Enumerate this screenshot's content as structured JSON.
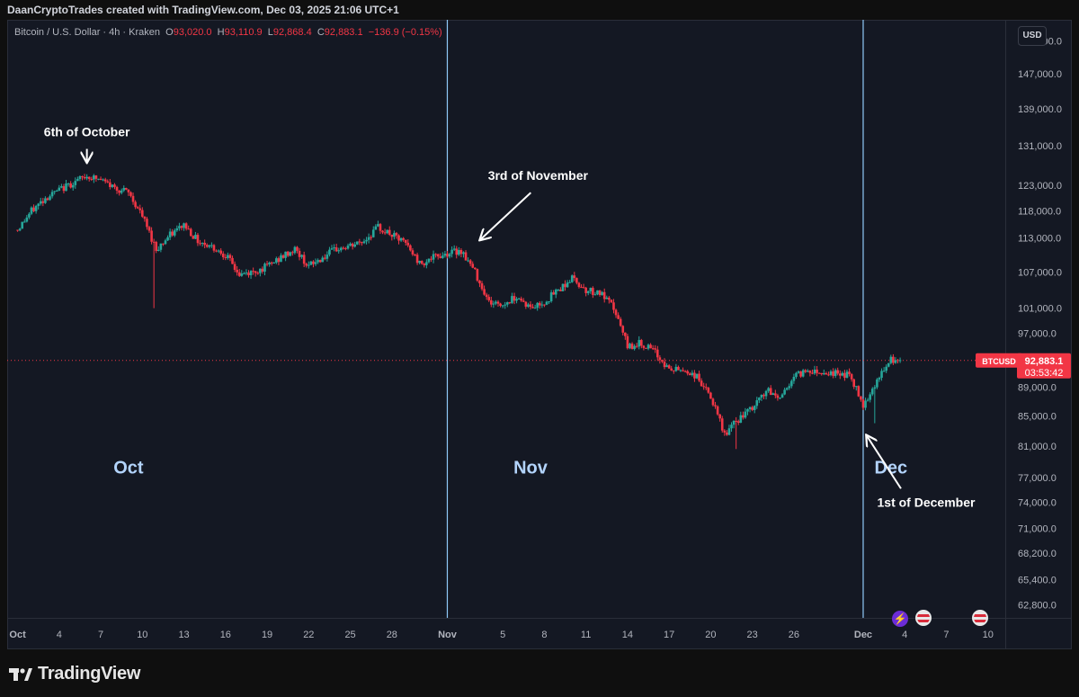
{
  "header": {
    "attribution": "DaanCryptoTrades created with TradingView.com, Dec 03, 2025 21:06 UTC+1"
  },
  "legend": {
    "symbol": "Bitcoin / U.S. Dollar · 4h · Kraken",
    "o_label": "O",
    "o_value": "93,020.0",
    "h_label": "H",
    "h_value": "93,110.9",
    "l_label": "L",
    "l_value": "92,868.4",
    "c_label": "C",
    "c_value": "92,883.1",
    "change": "−136.9 (−0.15%)"
  },
  "currency": "USD",
  "price_tag": {
    "symbol": "BTCUSD",
    "price": "92,883.1",
    "countdown": "03:53:42"
  },
  "logo": "TradingView",
  "colors": {
    "up": "#26a69a",
    "down": "#f23645",
    "separator": "#90caf9",
    "month_text": "#b3d4fc",
    "annotation": "#ffffff"
  },
  "chart_data": {
    "type": "candlestick",
    "title": "Bitcoin / U.S. Dollar · 4h · Kraken",
    "y_scale": "log",
    "ylim": [
      61500,
      158000
    ],
    "y_ticks": [
      155000,
      147000,
      139000,
      131000,
      123000,
      118000,
      113000,
      107000,
      101000,
      97000,
      89000,
      85000,
      81000,
      77000,
      74000,
      71000,
      68200,
      65400,
      62800
    ],
    "y_tick_labels": [
      "155,000.0",
      "147,000.0",
      "139,000.0",
      "131,000.0",
      "123,000.0",
      "118,000.0",
      "113,000.0",
      "107,000.0",
      "101,000.0",
      "97,000.0",
      "89,000.0",
      "85,000.0",
      "81,000.0",
      "77,000.0",
      "74,000.0",
      "71,000.0",
      "68,200.0",
      "65,400.0",
      "62,800.0"
    ],
    "x_ticks": [
      {
        "date": "2025-10-01",
        "label": "Oct",
        "bold": true
      },
      {
        "date": "2025-10-04",
        "label": "4"
      },
      {
        "date": "2025-10-07",
        "label": "7"
      },
      {
        "date": "2025-10-10",
        "label": "10"
      },
      {
        "date": "2025-10-13",
        "label": "13"
      },
      {
        "date": "2025-10-16",
        "label": "16"
      },
      {
        "date": "2025-10-19",
        "label": "19"
      },
      {
        "date": "2025-10-22",
        "label": "22"
      },
      {
        "date": "2025-10-25",
        "label": "25"
      },
      {
        "date": "2025-10-28",
        "label": "28"
      },
      {
        "date": "2025-11-01",
        "label": "Nov",
        "bold": true
      },
      {
        "date": "2025-11-05",
        "label": "5"
      },
      {
        "date": "2025-11-08",
        "label": "8"
      },
      {
        "date": "2025-11-11",
        "label": "11"
      },
      {
        "date": "2025-11-14",
        "label": "14"
      },
      {
        "date": "2025-11-17",
        "label": "17"
      },
      {
        "date": "2025-11-20",
        "label": "20"
      },
      {
        "date": "2025-11-23",
        "label": "23"
      },
      {
        "date": "2025-11-26",
        "label": "26"
      },
      {
        "date": "2025-12-01",
        "label": "Dec",
        "bold": true
      },
      {
        "date": "2025-12-04",
        "label": "4"
      },
      {
        "date": "2025-12-07",
        "label": "7"
      },
      {
        "date": "2025-12-10",
        "label": "10"
      }
    ],
    "month_separators": [
      "2025-11-01",
      "2025-12-01"
    ],
    "month_labels": [
      {
        "date": "2025-10-09",
        "label": "Oct"
      },
      {
        "date": "2025-11-07",
        "label": "Nov"
      },
      {
        "date": "2025-12-03",
        "label": "Dec"
      }
    ],
    "price_line": 92883.1,
    "annotations": [
      {
        "text": "6th of October",
        "date": "2025-10-06",
        "price": 125500,
        "label_price": 133000,
        "arrow": "down"
      },
      {
        "text": "3rd of November",
        "date": "2025-11-03",
        "price": 110800,
        "label_price": 124000,
        "arrow": "down-left"
      },
      {
        "text": "1st of December",
        "date": "2025-12-01",
        "price": 84000,
        "label_price": 73500,
        "arrow": "up"
      }
    ],
    "close_path": [
      [
        "2025-10-01",
        114500
      ],
      [
        "2025-10-02",
        118000
      ],
      [
        "2025-10-03",
        120500
      ],
      [
        "2025-10-04",
        122000
      ],
      [
        "2025-10-05",
        123500
      ],
      [
        "2025-10-06",
        124800
      ],
      [
        "2025-10-07",
        124000
      ],
      [
        "2025-10-08",
        122500
      ],
      [
        "2025-10-09",
        121500
      ],
      [
        "2025-10-10",
        117000
      ],
      [
        "2025-10-11",
        111000
      ],
      [
        "2025-10-12",
        113500
      ],
      [
        "2025-10-13",
        115500
      ],
      [
        "2025-10-14",
        112500
      ],
      [
        "2025-10-15",
        111500
      ],
      [
        "2025-10-16",
        110000
      ],
      [
        "2025-10-17",
        106500
      ],
      [
        "2025-10-18",
        107000
      ],
      [
        "2025-10-19",
        108000
      ],
      [
        "2025-10-20",
        109500
      ],
      [
        "2025-10-21",
        111000
      ],
      [
        "2025-10-22",
        108000
      ],
      [
        "2025-10-23",
        109500
      ],
      [
        "2025-10-24",
        111000
      ],
      [
        "2025-10-25",
        111500
      ],
      [
        "2025-10-26",
        112500
      ],
      [
        "2025-10-27",
        115000
      ],
      [
        "2025-10-28",
        113500
      ],
      [
        "2025-10-29",
        112000
      ],
      [
        "2025-10-30",
        108500
      ],
      [
        "2025-10-31",
        109500
      ],
      [
        "2025-11-01",
        110300
      ],
      [
        "2025-11-02",
        110800
      ],
      [
        "2025-11-03",
        107000
      ],
      [
        "2025-11-04",
        102000
      ],
      [
        "2025-11-05",
        101500
      ],
      [
        "2025-11-06",
        103000
      ],
      [
        "2025-11-07",
        101000
      ],
      [
        "2025-11-08",
        102000
      ],
      [
        "2025-11-09",
        104000
      ],
      [
        "2025-11-10",
        106000
      ],
      [
        "2025-11-11",
        104000
      ],
      [
        "2025-11-12",
        103500
      ],
      [
        "2025-11-13",
        101000
      ],
      [
        "2025-11-14",
        95000
      ],
      [
        "2025-11-15",
        95500
      ],
      [
        "2025-11-16",
        94000
      ],
      [
        "2025-11-17",
        91500
      ],
      [
        "2025-11-18",
        91500
      ],
      [
        "2025-11-19",
        90500
      ],
      [
        "2025-11-20",
        87500
      ],
      [
        "2025-11-21",
        82500
      ],
      [
        "2025-11-22",
        84500
      ],
      [
        "2025-11-23",
        86000
      ],
      [
        "2025-11-24",
        88500
      ],
      [
        "2025-11-25",
        87500
      ],
      [
        "2025-11-26",
        90500
      ],
      [
        "2025-11-27",
        91500
      ],
      [
        "2025-11-28",
        91200
      ],
      [
        "2025-11-29",
        91000
      ],
      [
        "2025-11-30",
        90800
      ],
      [
        "2025-12-01",
        86500
      ],
      [
        "2025-12-02",
        90000
      ],
      [
        "2025-12-03",
        92883
      ]
    ],
    "extreme_wicks": [
      {
        "date": "2025-10-10",
        "low": 101000
      },
      {
        "date": "2025-11-21",
        "low": 80600
      },
      {
        "date": "2025-12-01",
        "low": 84000
      }
    ]
  }
}
